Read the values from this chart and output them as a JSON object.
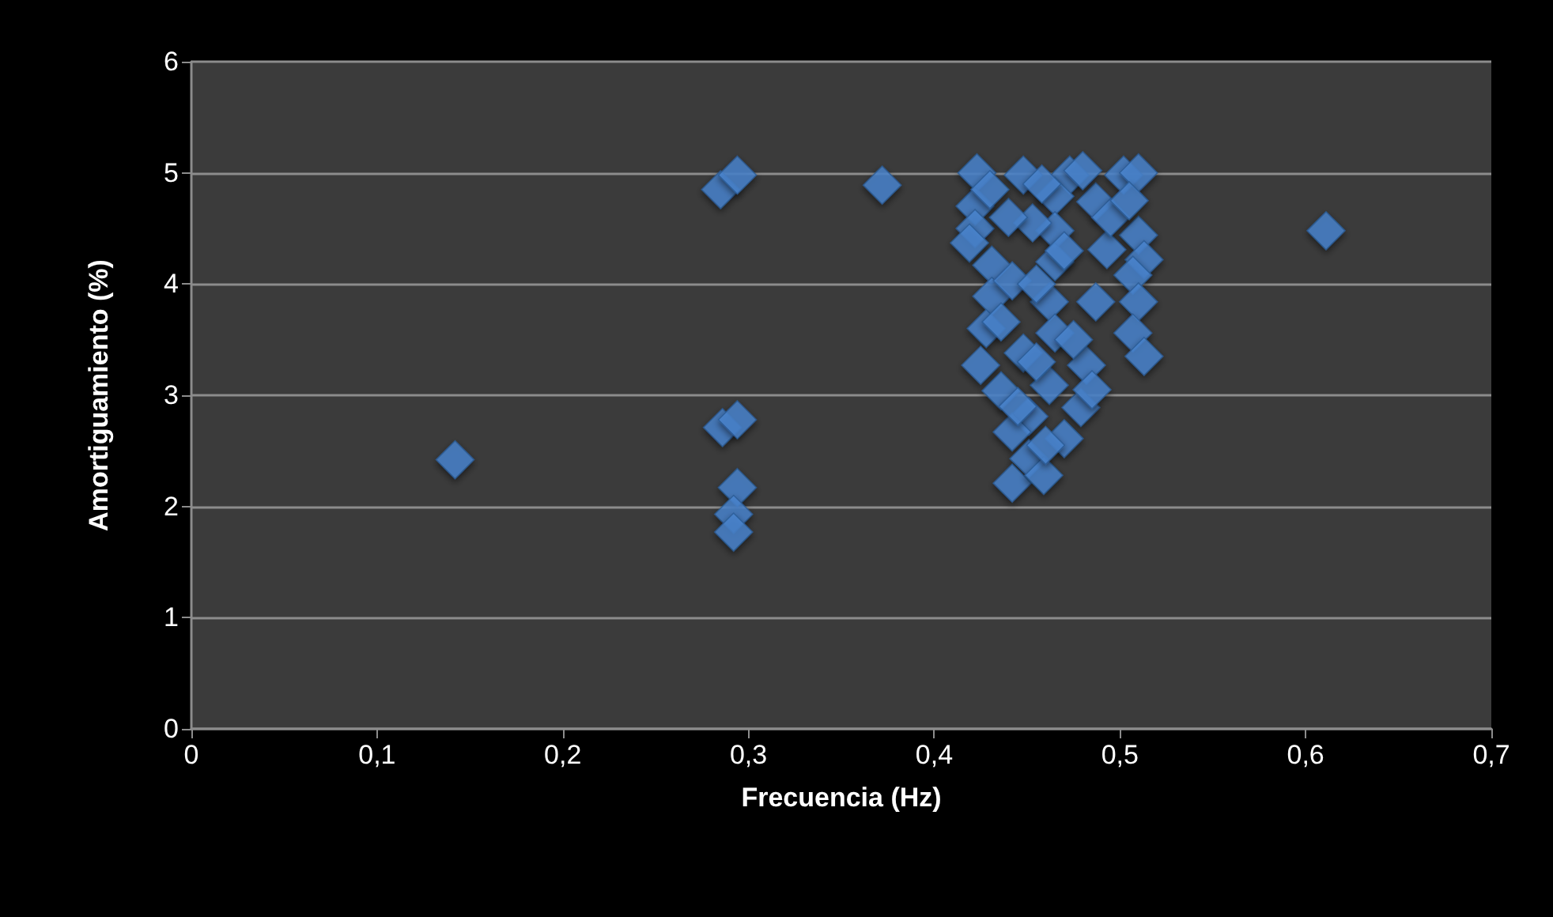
{
  "chart_data": {
    "type": "scatter",
    "xlabel": "Frecuencia (Hz)",
    "ylabel": "Amortiguamiento (%)",
    "marker": "diamond",
    "grid": "y",
    "xlim": [
      0,
      0.7
    ],
    "xticks": [
      0,
      {
        "value": 0.1,
        "label": "0,1"
      },
      {
        "value": 0.2,
        "label": "0,2"
      },
      {
        "value": 0.3,
        "label": "0,3"
      },
      {
        "value": 0.4,
        "label": "0,4"
      },
      {
        "value": 0.5,
        "label": "0,5"
      },
      {
        "value": 0.6,
        "label": "0,6"
      },
      {
        "value": 0.7,
        "label": "0,7"
      }
    ],
    "ylim": [
      0,
      6
    ],
    "yticks": [
      0,
      1,
      2,
      3,
      4,
      5,
      6
    ],
    "series": [
      {
        "color": "#4a86cf",
        "x": [
          0.142,
          0.285,
          0.294,
          0.372,
          0.286,
          0.294,
          0.294,
          0.292,
          0.292,
          0.611,
          0.423,
          0.473,
          0.502,
          0.51,
          0.465,
          0.422,
          0.422,
          0.419,
          0.465,
          0.51,
          0.465,
          0.513,
          0.431,
          0.507,
          0.431,
          0.462,
          0.51,
          0.428,
          0.507,
          0.465,
          0.425,
          0.513,
          0.462,
          0.451,
          0.442,
          0.451,
          0.442,
          0.459,
          0.487,
          0.493,
          0.487,
          0.482,
          0.479,
          0.47,
          0.448,
          0.453,
          0.442,
          0.448,
          0.436,
          0.436,
          0.458,
          0.48,
          0.495,
          0.44,
          0.455,
          0.475,
          0.485,
          0.455,
          0.47,
          0.43,
          0.505,
          0.46,
          0.445
        ],
        "values": [
          2.42,
          4.85,
          4.98,
          4.89,
          2.71,
          2.78,
          2.17,
          1.93,
          1.77,
          4.48,
          5.0,
          4.98,
          4.98,
          5.0,
          4.79,
          4.7,
          4.5,
          4.37,
          4.48,
          4.44,
          4.2,
          4.22,
          4.17,
          4.08,
          3.89,
          3.84,
          3.84,
          3.6,
          3.56,
          3.56,
          3.27,
          3.35,
          3.09,
          2.81,
          2.67,
          2.43,
          2.21,
          2.28,
          4.74,
          4.31,
          3.84,
          3.27,
          2.89,
          2.61,
          4.98,
          4.55,
          4.03,
          3.38,
          3.04,
          3.66,
          4.9,
          5.02,
          4.6,
          4.6,
          4.0,
          3.5,
          3.05,
          3.3,
          4.3,
          4.85,
          4.75,
          2.55,
          2.9
        ]
      }
    ]
  }
}
